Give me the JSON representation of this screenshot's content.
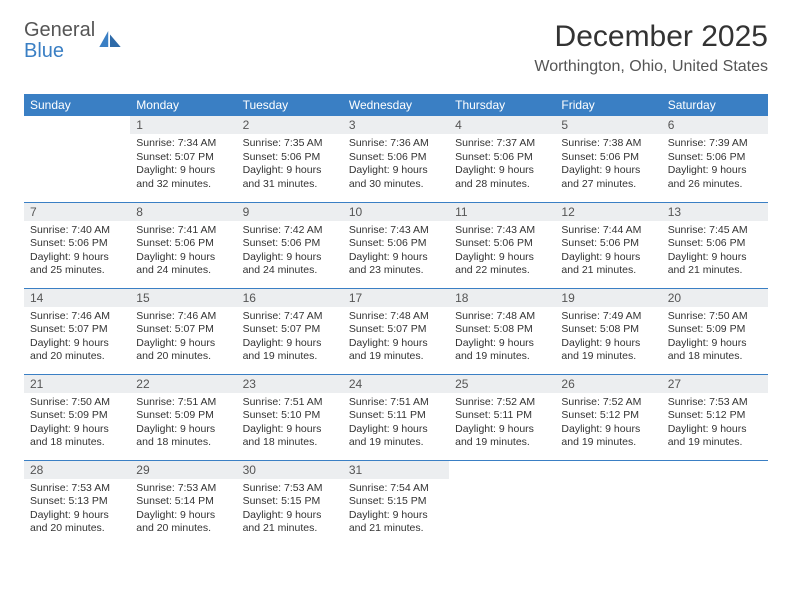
{
  "brand": {
    "general": "General",
    "blue": "Blue"
  },
  "title": "December 2025",
  "location": "Worthington, Ohio, United States",
  "header_color": "#3a7fc4",
  "day_headers": [
    "Sunday",
    "Monday",
    "Tuesday",
    "Wednesday",
    "Thursday",
    "Friday",
    "Saturday"
  ],
  "weeks": [
    [
      {
        "n": "",
        "sr": "",
        "ss": "",
        "dl": ""
      },
      {
        "n": "1",
        "sr": "Sunrise: 7:34 AM",
        "ss": "Sunset: 5:07 PM",
        "dl": "Daylight: 9 hours and 32 minutes."
      },
      {
        "n": "2",
        "sr": "Sunrise: 7:35 AM",
        "ss": "Sunset: 5:06 PM",
        "dl": "Daylight: 9 hours and 31 minutes."
      },
      {
        "n": "3",
        "sr": "Sunrise: 7:36 AM",
        "ss": "Sunset: 5:06 PM",
        "dl": "Daylight: 9 hours and 30 minutes."
      },
      {
        "n": "4",
        "sr": "Sunrise: 7:37 AM",
        "ss": "Sunset: 5:06 PM",
        "dl": "Daylight: 9 hours and 28 minutes."
      },
      {
        "n": "5",
        "sr": "Sunrise: 7:38 AM",
        "ss": "Sunset: 5:06 PM",
        "dl": "Daylight: 9 hours and 27 minutes."
      },
      {
        "n": "6",
        "sr": "Sunrise: 7:39 AM",
        "ss": "Sunset: 5:06 PM",
        "dl": "Daylight: 9 hours and 26 minutes."
      }
    ],
    [
      {
        "n": "7",
        "sr": "Sunrise: 7:40 AM",
        "ss": "Sunset: 5:06 PM",
        "dl": "Daylight: 9 hours and 25 minutes."
      },
      {
        "n": "8",
        "sr": "Sunrise: 7:41 AM",
        "ss": "Sunset: 5:06 PM",
        "dl": "Daylight: 9 hours and 24 minutes."
      },
      {
        "n": "9",
        "sr": "Sunrise: 7:42 AM",
        "ss": "Sunset: 5:06 PM",
        "dl": "Daylight: 9 hours and 24 minutes."
      },
      {
        "n": "10",
        "sr": "Sunrise: 7:43 AM",
        "ss": "Sunset: 5:06 PM",
        "dl": "Daylight: 9 hours and 23 minutes."
      },
      {
        "n": "11",
        "sr": "Sunrise: 7:43 AM",
        "ss": "Sunset: 5:06 PM",
        "dl": "Daylight: 9 hours and 22 minutes."
      },
      {
        "n": "12",
        "sr": "Sunrise: 7:44 AM",
        "ss": "Sunset: 5:06 PM",
        "dl": "Daylight: 9 hours and 21 minutes."
      },
      {
        "n": "13",
        "sr": "Sunrise: 7:45 AM",
        "ss": "Sunset: 5:06 PM",
        "dl": "Daylight: 9 hours and 21 minutes."
      }
    ],
    [
      {
        "n": "14",
        "sr": "Sunrise: 7:46 AM",
        "ss": "Sunset: 5:07 PM",
        "dl": "Daylight: 9 hours and 20 minutes."
      },
      {
        "n": "15",
        "sr": "Sunrise: 7:46 AM",
        "ss": "Sunset: 5:07 PM",
        "dl": "Daylight: 9 hours and 20 minutes."
      },
      {
        "n": "16",
        "sr": "Sunrise: 7:47 AM",
        "ss": "Sunset: 5:07 PM",
        "dl": "Daylight: 9 hours and 19 minutes."
      },
      {
        "n": "17",
        "sr": "Sunrise: 7:48 AM",
        "ss": "Sunset: 5:07 PM",
        "dl": "Daylight: 9 hours and 19 minutes."
      },
      {
        "n": "18",
        "sr": "Sunrise: 7:48 AM",
        "ss": "Sunset: 5:08 PM",
        "dl": "Daylight: 9 hours and 19 minutes."
      },
      {
        "n": "19",
        "sr": "Sunrise: 7:49 AM",
        "ss": "Sunset: 5:08 PM",
        "dl": "Daylight: 9 hours and 19 minutes."
      },
      {
        "n": "20",
        "sr": "Sunrise: 7:50 AM",
        "ss": "Sunset: 5:09 PM",
        "dl": "Daylight: 9 hours and 18 minutes."
      }
    ],
    [
      {
        "n": "21",
        "sr": "Sunrise: 7:50 AM",
        "ss": "Sunset: 5:09 PM",
        "dl": "Daylight: 9 hours and 18 minutes."
      },
      {
        "n": "22",
        "sr": "Sunrise: 7:51 AM",
        "ss": "Sunset: 5:09 PM",
        "dl": "Daylight: 9 hours and 18 minutes."
      },
      {
        "n": "23",
        "sr": "Sunrise: 7:51 AM",
        "ss": "Sunset: 5:10 PM",
        "dl": "Daylight: 9 hours and 18 minutes."
      },
      {
        "n": "24",
        "sr": "Sunrise: 7:51 AM",
        "ss": "Sunset: 5:11 PM",
        "dl": "Daylight: 9 hours and 19 minutes."
      },
      {
        "n": "25",
        "sr": "Sunrise: 7:52 AM",
        "ss": "Sunset: 5:11 PM",
        "dl": "Daylight: 9 hours and 19 minutes."
      },
      {
        "n": "26",
        "sr": "Sunrise: 7:52 AM",
        "ss": "Sunset: 5:12 PM",
        "dl": "Daylight: 9 hours and 19 minutes."
      },
      {
        "n": "27",
        "sr": "Sunrise: 7:53 AM",
        "ss": "Sunset: 5:12 PM",
        "dl": "Daylight: 9 hours and 19 minutes."
      }
    ],
    [
      {
        "n": "28",
        "sr": "Sunrise: 7:53 AM",
        "ss": "Sunset: 5:13 PM",
        "dl": "Daylight: 9 hours and 20 minutes."
      },
      {
        "n": "29",
        "sr": "Sunrise: 7:53 AM",
        "ss": "Sunset: 5:14 PM",
        "dl": "Daylight: 9 hours and 20 minutes."
      },
      {
        "n": "30",
        "sr": "Sunrise: 7:53 AM",
        "ss": "Sunset: 5:15 PM",
        "dl": "Daylight: 9 hours and 21 minutes."
      },
      {
        "n": "31",
        "sr": "Sunrise: 7:54 AM",
        "ss": "Sunset: 5:15 PM",
        "dl": "Daylight: 9 hours and 21 minutes."
      },
      {
        "n": "",
        "sr": "",
        "ss": "",
        "dl": ""
      },
      {
        "n": "",
        "sr": "",
        "ss": "",
        "dl": ""
      },
      {
        "n": "",
        "sr": "",
        "ss": "",
        "dl": ""
      }
    ]
  ]
}
